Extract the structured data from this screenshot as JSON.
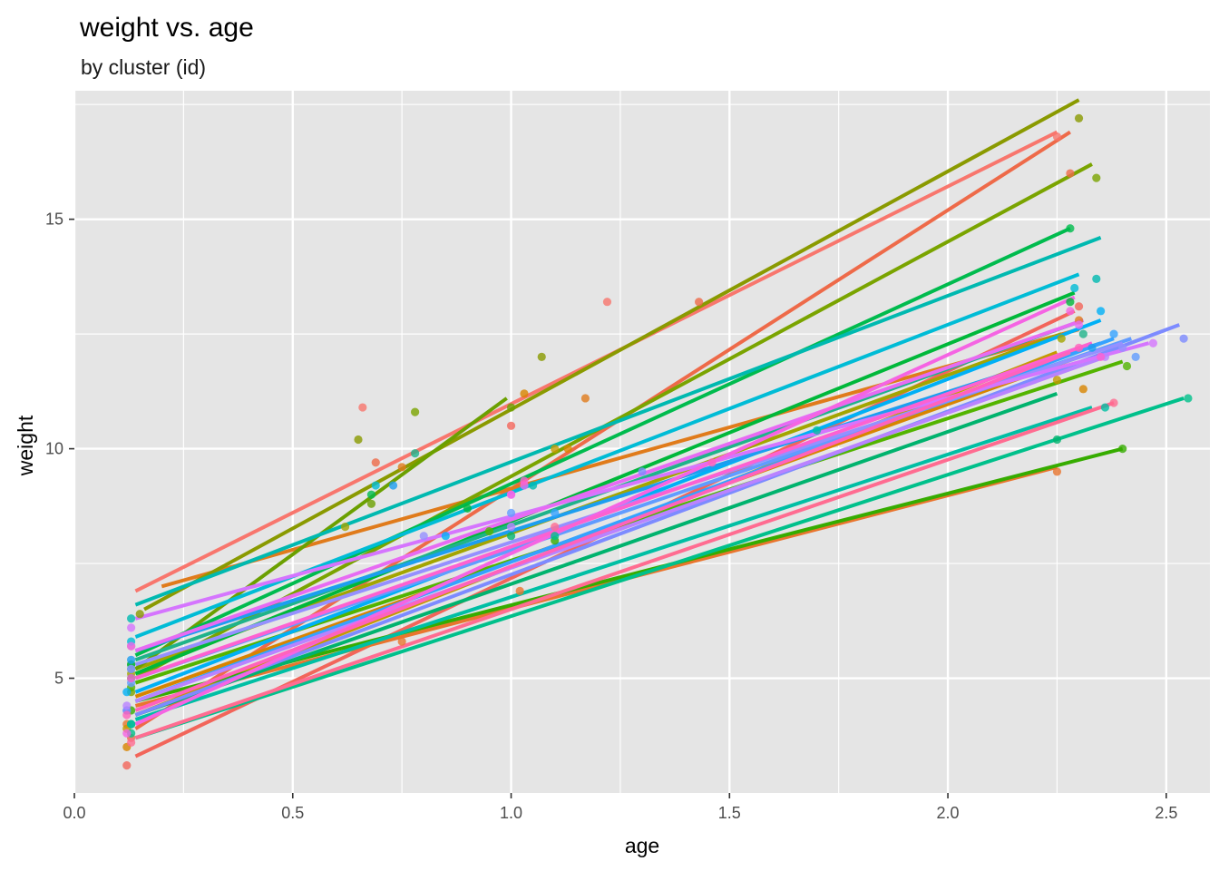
{
  "chart_data": {
    "type": "line",
    "title": "weight vs. age",
    "subtitle": "by cluster (id)",
    "xlabel": "age",
    "ylabel": "weight",
    "xlim": [
      0,
      2.6
    ],
    "ylim": [
      2.5,
      17.8
    ],
    "x_ticks": [
      0.0,
      0.5,
      1.0,
      1.5,
      2.0,
      2.5
    ],
    "x_tick_labels": [
      "0.0",
      "0.5",
      "1.0",
      "1.5",
      "2.0",
      "2.5"
    ],
    "y_ticks": [
      5,
      10,
      15
    ],
    "y_tick_labels": [
      "5",
      "10",
      "15"
    ],
    "grid": true,
    "legend": "none",
    "panel_color": "#e5e5e5",
    "grid_color": "#ffffff",
    "series": [
      {
        "color": "#f8766d",
        "fit": [
          [
            0.14,
            6.9
          ],
          [
            2.25,
            16.9
          ]
        ],
        "points": [
          [
            0.13,
            5.7
          ],
          [
            0.66,
            10.9
          ],
          [
            1.22,
            13.2
          ],
          [
            2.25,
            16.8
          ]
        ]
      },
      {
        "color": "#f2655a",
        "fit": [
          [
            0.14,
            3.3
          ],
          [
            2.29,
            13.0
          ]
        ],
        "points": [
          [
            0.12,
            3.1
          ],
          [
            1.0,
            10.5
          ],
          [
            2.3,
            13.1
          ]
        ]
      },
      {
        "color": "#ee6a49",
        "fit": [
          [
            0.14,
            3.9
          ],
          [
            2.28,
            16.9
          ]
        ],
        "points": [
          [
            0.13,
            3.7
          ],
          [
            0.69,
            9.7
          ],
          [
            1.43,
            13.2
          ],
          [
            2.28,
            16.0
          ]
        ]
      },
      {
        "color": "#e9752e",
        "fit": [
          [
            0.14,
            4.4
          ],
          [
            2.25,
            9.6
          ]
        ],
        "points": [
          [
            0.12,
            4.0
          ],
          [
            0.75,
            5.8
          ],
          [
            1.02,
            6.9
          ],
          [
            2.25,
            9.5
          ]
        ]
      },
      {
        "color": "#d88400",
        "fit": [
          [
            0.14,
            4.6
          ],
          [
            2.33,
            12.1
          ]
        ],
        "points": [
          [
            0.12,
            3.5
          ],
          [
            1.03,
            11.2
          ],
          [
            1.13,
            10.0
          ],
          [
            2.31,
            11.3
          ]
        ]
      },
      {
        "color": "#e07b1b",
        "fit": [
          [
            0.2,
            7.0
          ],
          [
            2.3,
            12.6
          ]
        ],
        "points": [
          [
            0.75,
            9.6
          ],
          [
            1.17,
            11.1
          ],
          [
            2.3,
            12.8
          ]
        ]
      },
      {
        "color": "#c49a00",
        "fit": [
          [
            0.14,
            4.2
          ],
          [
            2.25,
            12.1
          ]
        ],
        "points": [
          [
            0.12,
            3.9
          ],
          [
            1.1,
            10.0
          ],
          [
            2.25,
            11.5
          ]
        ]
      },
      {
        "color": "#a3a500",
        "fit": [
          [
            0.14,
            5.2
          ],
          [
            2.26,
            12.5
          ]
        ],
        "points": [
          [
            0.13,
            5.1
          ],
          [
            0.62,
            8.3
          ],
          [
            2.26,
            12.4
          ]
        ]
      },
      {
        "color": "#8a9a00",
        "fit": [
          [
            0.16,
            6.5
          ],
          [
            2.3,
            17.6
          ]
        ],
        "points": [
          [
            0.15,
            6.4
          ],
          [
            0.65,
            10.2
          ],
          [
            1.07,
            12.0
          ],
          [
            2.3,
            17.2
          ]
        ]
      },
      {
        "color": "#7aa400",
        "fit": [
          [
            0.14,
            5.0
          ],
          [
            2.33,
            16.2
          ]
        ],
        "points": [
          [
            0.13,
            4.7
          ],
          [
            0.78,
            10.8
          ],
          [
            2.34,
            15.9
          ]
        ]
      },
      {
        "color": "#6ba000",
        "fit": [
          [
            0.14,
            5.2
          ],
          [
            0.99,
            11.1
          ]
        ],
        "points": [
          [
            0.13,
            5.3
          ],
          [
            0.68,
            8.8
          ],
          [
            1.0,
            10.9
          ]
        ]
      },
      {
        "color": "#53b400",
        "fit": [
          [
            0.14,
            4.9
          ],
          [
            2.4,
            11.9
          ]
        ],
        "points": [
          [
            0.13,
            4.8
          ],
          [
            0.95,
            8.2
          ],
          [
            2.41,
            11.8
          ]
        ]
      },
      {
        "color": "#36ac00",
        "fit": [
          [
            0.14,
            4.5
          ],
          [
            2.4,
            10.0
          ]
        ],
        "points": [
          [
            0.13,
            4.3
          ],
          [
            1.1,
            8.0
          ],
          [
            2.4,
            10.0
          ]
        ]
      },
      {
        "color": "#00b83a",
        "fit": [
          [
            0.14,
            5.1
          ],
          [
            2.29,
            13.4
          ]
        ],
        "points": [
          [
            0.13,
            5.0
          ],
          [
            0.9,
            8.7
          ],
          [
            2.28,
            13.2
          ]
        ]
      },
      {
        "color": "#00bb4e",
        "fit": [
          [
            0.14,
            5.5
          ],
          [
            2.28,
            14.8
          ]
        ],
        "points": [
          [
            0.13,
            5.3
          ],
          [
            0.68,
            9.0
          ],
          [
            2.28,
            14.8
          ]
        ]
      },
      {
        "color": "#00b36e",
        "fit": [
          [
            0.14,
            4.2
          ],
          [
            2.25,
            11.2
          ]
        ],
        "points": [
          [
            0.13,
            4.0
          ],
          [
            1.0,
            8.1
          ],
          [
            2.25,
            10.2
          ]
        ]
      },
      {
        "color": "#00c08b",
        "fit": [
          [
            0.14,
            3.7
          ],
          [
            2.54,
            11.1
          ]
        ],
        "points": [
          [
            0.13,
            3.8
          ],
          [
            1.1,
            8.1
          ],
          [
            2.55,
            11.1
          ]
        ]
      },
      {
        "color": "#1fb38a",
        "fit": [
          [
            0.14,
            5.4
          ],
          [
            2.31,
            12.8
          ]
        ],
        "points": [
          [
            0.13,
            5.2
          ],
          [
            0.78,
            9.9
          ],
          [
            2.31,
            12.5
          ]
        ]
      },
      {
        "color": "#00bfa4",
        "fit": [
          [
            0.14,
            4.1
          ],
          [
            2.33,
            10.9
          ]
        ],
        "points": [
          [
            0.13,
            4.0
          ],
          [
            1.7,
            10.4
          ],
          [
            2.36,
            10.9
          ]
        ]
      },
      {
        "color": "#00b9b0",
        "fit": [
          [
            0.14,
            6.6
          ],
          [
            2.35,
            14.6
          ]
        ],
        "points": [
          [
            0.13,
            6.3
          ],
          [
            1.05,
            9.2
          ],
          [
            2.34,
            13.7
          ]
        ]
      },
      {
        "color": "#00bcd6",
        "fit": [
          [
            0.14,
            5.9
          ],
          [
            2.3,
            13.8
          ]
        ],
        "points": [
          [
            0.13,
            5.8
          ],
          [
            0.69,
            9.2
          ],
          [
            2.29,
            13.5
          ]
        ]
      },
      {
        "color": "#00b0f6",
        "fit": [
          [
            0.14,
            4.7
          ],
          [
            2.35,
            12.8
          ]
        ],
        "points": [
          [
            0.12,
            4.7
          ],
          [
            0.85,
            8.1
          ],
          [
            2.35,
            13.0
          ]
        ]
      },
      {
        "color": "#1c9ef0",
        "fit": [
          [
            0.14,
            5.6
          ],
          [
            2.35,
            12.3
          ]
        ],
        "points": [
          [
            0.13,
            5.4
          ],
          [
            0.73,
            9.2
          ],
          [
            2.33,
            12.2
          ]
        ]
      },
      {
        "color": "#35a2ff",
        "fit": [
          [
            0.14,
            4.5
          ],
          [
            2.38,
            12.4
          ]
        ],
        "points": [
          [
            0.12,
            4.3
          ],
          [
            1.1,
            8.6
          ],
          [
            2.38,
            12.5
          ]
        ]
      },
      {
        "color": "#619cff",
        "fit": [
          [
            0.14,
            5.0
          ],
          [
            2.42,
            12.4
          ]
        ],
        "points": [
          [
            0.13,
            4.9
          ],
          [
            1.0,
            8.6
          ],
          [
            2.43,
            12.0
          ]
        ]
      },
      {
        "color": "#7d8bff",
        "fit": [
          [
            0.14,
            4.2
          ],
          [
            2.53,
            12.7
          ]
        ],
        "points": [
          [
            0.12,
            4.3
          ],
          [
            1.3,
            9.5
          ],
          [
            2.54,
            12.4
          ]
        ]
      },
      {
        "color": "#9590ff",
        "fit": [
          [
            0.14,
            5.3
          ],
          [
            2.4,
            12.3
          ]
        ],
        "points": [
          [
            0.13,
            5.2
          ],
          [
            0.8,
            8.1
          ],
          [
            2.4,
            12.2
          ]
        ]
      },
      {
        "color": "#b983ff",
        "fit": [
          [
            0.14,
            4.5
          ],
          [
            2.36,
            12.0
          ]
        ],
        "points": [
          [
            0.12,
            4.4
          ],
          [
            1.0,
            8.3
          ],
          [
            2.36,
            12.0
          ]
        ]
      },
      {
        "color": "#d575fe",
        "fit": [
          [
            0.14,
            6.3
          ],
          [
            2.46,
            12.3
          ]
        ],
        "points": [
          [
            0.13,
            6.1
          ],
          [
            1.0,
            9.0
          ],
          [
            2.47,
            12.3
          ]
        ]
      },
      {
        "color": "#e76bf3",
        "fit": [
          [
            0.14,
            5.6
          ],
          [
            2.31,
            12.8
          ]
        ],
        "points": [
          [
            0.13,
            5.7
          ],
          [
            1.03,
            9.2
          ],
          [
            2.3,
            12.7
          ]
        ]
      },
      {
        "color": "#f564e3",
        "fit": [
          [
            0.14,
            4.0
          ],
          [
            2.29,
            13.3
          ]
        ],
        "points": [
          [
            0.12,
            3.8
          ],
          [
            1.0,
            9.0
          ],
          [
            2.28,
            13.0
          ]
        ]
      },
      {
        "color": "#fd61d1",
        "fit": [
          [
            0.14,
            5.0
          ],
          [
            2.33,
            12.3
          ]
        ],
        "points": [
          [
            0.13,
            5.0
          ],
          [
            1.03,
            9.3
          ],
          [
            2.35,
            12.0
          ]
        ]
      },
      {
        "color": "#ff62bc",
        "fit": [
          [
            0.14,
            4.3
          ],
          [
            2.28,
            12.1
          ]
        ],
        "points": [
          [
            0.12,
            4.2
          ],
          [
            1.46,
            9.7
          ],
          [
            2.3,
            12.2
          ]
        ]
      },
      {
        "color": "#ff6c91",
        "fit": [
          [
            0.14,
            3.7
          ],
          [
            2.38,
            11.0
          ]
        ],
        "points": [
          [
            0.13,
            3.6
          ],
          [
            1.1,
            8.3
          ],
          [
            2.38,
            11.0
          ]
        ]
      }
    ]
  }
}
